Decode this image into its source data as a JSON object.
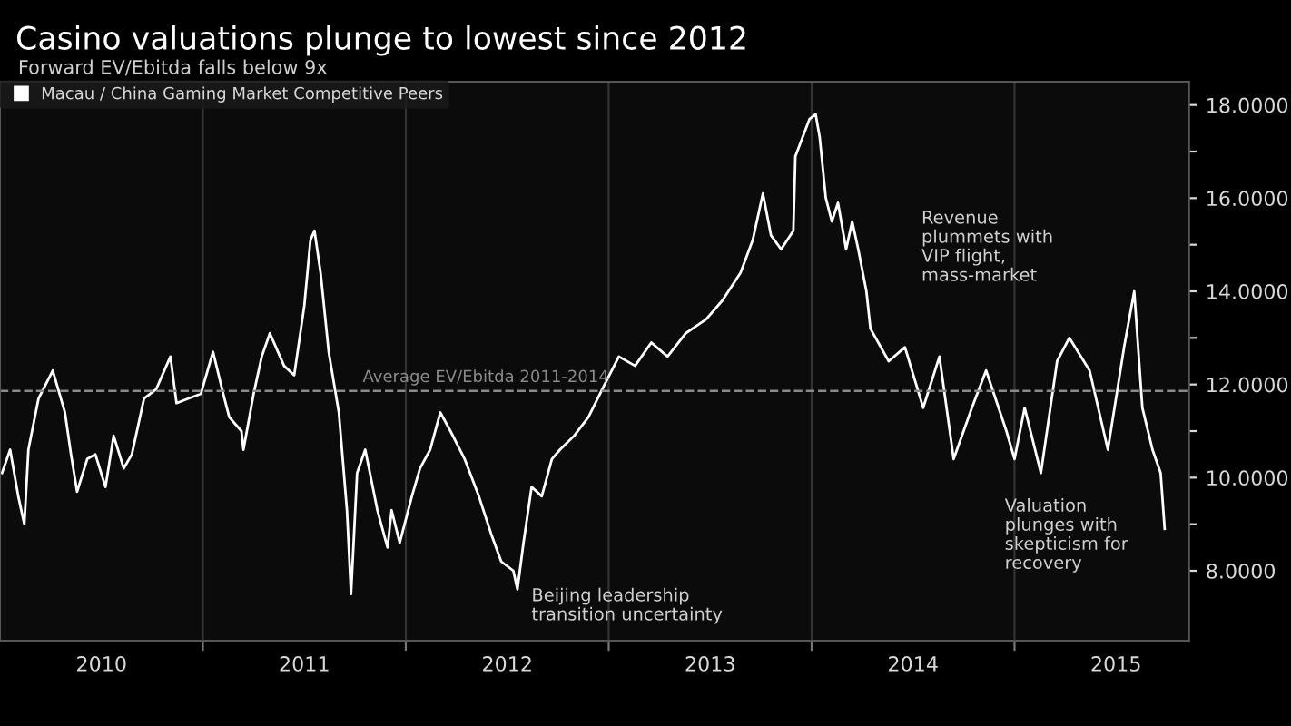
{
  "chart_data": {
    "type": "line",
    "title": "Casino valuations plunge to lowest since 2012",
    "subtitle": "Forward EV/Ebitda falls below 9x",
    "series": [
      {
        "name": "Macau / China Gaming Market Competitive Peers",
        "color": "#ffffff",
        "x": [
          2010.01,
          2010.05,
          2010.09,
          2010.12,
          2010.14,
          2010.19,
          2010.26,
          2010.32,
          2010.35,
          2010.38,
          2010.43,
          2010.47,
          2010.52,
          2010.56,
          2010.61,
          2010.65,
          2010.71,
          2010.77,
          2010.84,
          2010.87,
          2010.93,
          2010.99,
          2011.05,
          2011.1,
          2011.13,
          2011.19,
          2011.2,
          2011.25,
          2011.29,
          2011.33,
          2011.4,
          2011.45,
          2011.5,
          2011.53,
          2011.55,
          2011.58,
          2011.62,
          2011.67,
          2011.71,
          2011.73,
          2011.76,
          2011.8,
          2011.86,
          2011.91,
          2011.93,
          2011.97,
          2012.03,
          2012.07,
          2012.12,
          2012.17,
          2012.22,
          2012.29,
          2012.36,
          2012.42,
          2012.47,
          2012.53,
          2012.55,
          2012.58,
          2012.62,
          2012.67,
          2012.72,
          2012.76,
          2012.83,
          2012.9,
          2012.98,
          2013.05,
          2013.13,
          2013.21,
          2013.29,
          2013.38,
          2013.48,
          2013.56,
          2013.65,
          2013.71,
          2013.76,
          2013.8,
          2013.85,
          2013.91,
          2013.92,
          2013.99,
          2014.02,
          2014.04,
          2014.07,
          2014.1,
          2014.13,
          2014.17,
          2014.2,
          2014.23,
          2014.27,
          2014.29,
          2014.38,
          2014.46,
          2014.55,
          2014.63,
          2014.7,
          2014.79,
          2014.86,
          2014.96,
          2015.0,
          2015.05,
          2015.13,
          2015.21,
          2015.27,
          2015.37,
          2015.46,
          2015.54,
          2015.59,
          2015.63,
          2015.68,
          2015.72,
          2015.74
        ],
        "values": [
          10.1,
          10.6,
          9.6,
          9.0,
          10.6,
          11.7,
          12.3,
          11.4,
          10.5,
          9.7,
          10.4,
          10.5,
          9.8,
          10.9,
          10.2,
          10.5,
          11.7,
          11.9,
          12.6,
          11.6,
          11.7,
          11.8,
          12.7,
          11.8,
          11.3,
          11.0,
          10.6,
          11.8,
          12.6,
          13.1,
          12.4,
          12.2,
          13.7,
          15.1,
          15.3,
          14.4,
          12.7,
          11.4,
          9.3,
          7.5,
          10.1,
          10.6,
          9.3,
          8.5,
          9.3,
          8.6,
          9.6,
          10.2,
          10.6,
          11.4,
          11.0,
          10.4,
          9.6,
          8.8,
          8.2,
          8.0,
          7.6,
          8.6,
          9.8,
          9.6,
          10.4,
          10.6,
          10.9,
          11.3,
          12.0,
          12.6,
          12.4,
          12.9,
          12.6,
          13.1,
          13.4,
          13.8,
          14.4,
          15.1,
          16.1,
          15.2,
          14.9,
          15.3,
          16.9,
          17.7,
          17.8,
          17.3,
          16.0,
          15.5,
          15.9,
          14.9,
          15.5,
          14.9,
          14.0,
          13.2,
          12.5,
          12.8,
          11.5,
          12.6,
          10.4,
          11.5,
          12.3,
          11.0,
          10.4,
          11.5,
          10.1,
          12.5,
          13.0,
          12.3,
          10.6,
          12.8,
          14.0,
          11.5,
          10.6,
          10.1,
          8.9
        ]
      }
    ],
    "xlim": [
      2010.0,
      2015.86
    ],
    "xticks": [
      {
        "value": 2010.5,
        "label": "2010"
      },
      {
        "value": 2011,
        "label": null
      },
      {
        "value": 2011.5,
        "label": "2011"
      },
      {
        "value": 2012,
        "label": null
      },
      {
        "value": 2012.5,
        "label": "2012"
      },
      {
        "value": 2013,
        "label": null
      },
      {
        "value": 2013.5,
        "label": "2013"
      },
      {
        "value": 2014,
        "label": null
      },
      {
        "value": 2014.5,
        "label": "2014"
      },
      {
        "value": 2015,
        "label": null
      },
      {
        "value": 2015.5,
        "label": "2015"
      }
    ],
    "ylim": [
      6.5,
      18.5
    ],
    "yticks": [
      {
        "value": 8,
        "label": "8.0000"
      },
      {
        "value": 9,
        "label": null
      },
      {
        "value": 10,
        "label": "10.0000"
      },
      {
        "value": 11,
        "label": null
      },
      {
        "value": 12,
        "label": "12.0000"
      },
      {
        "value": 13,
        "label": null
      },
      {
        "value": 14,
        "label": "14.0000"
      },
      {
        "value": 15,
        "label": null
      },
      {
        "value": 16,
        "label": "16.0000"
      },
      {
        "value": 17,
        "label": null
      },
      {
        "value": 18,
        "label": "18.0000"
      }
    ],
    "ref_lines": [
      {
        "axis": "y",
        "value": 11.86,
        "label": "Average EV/Ebitda 2011-2014",
        "color": "#8a8a8a",
        "line_style": "dashed"
      }
    ],
    "annotations": [
      "Revenue\nplummets with\nVIP flight,\nmass-market",
      "Beijing leadership\ntransition uncertainty",
      "Valuation\nplunges with\nskepticism for\nrecovery"
    ],
    "grid": "x",
    "legend": "top left",
    "marker": "none",
    "line_style": "solid"
  }
}
